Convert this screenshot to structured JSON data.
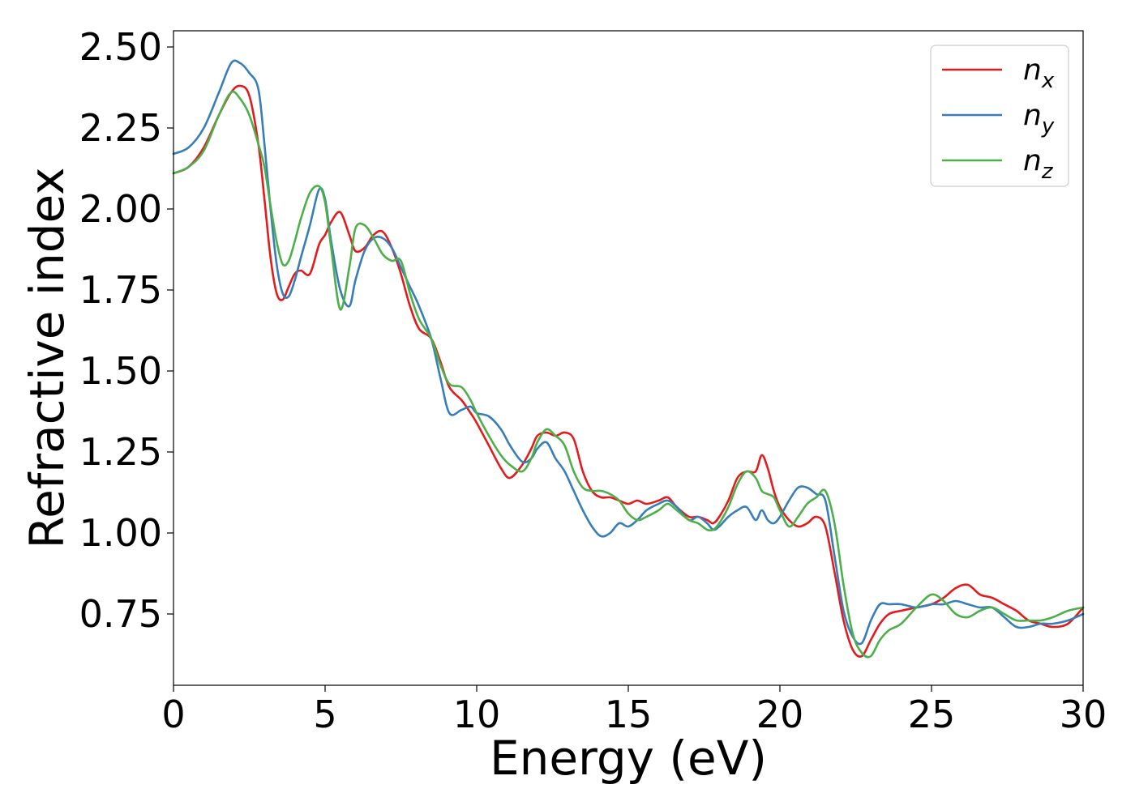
{
  "chart_data": {
    "type": "line",
    "title": "",
    "xlabel": "Energy (eV)",
    "ylabel": "Refractive index",
    "xlim": [
      0,
      30
    ],
    "ylim": [
      0.53,
      2.55
    ],
    "xticks": [
      0,
      5,
      10,
      15,
      20,
      25,
      30
    ],
    "yticks": [
      0.75,
      1.0,
      1.25,
      1.5,
      1.75,
      2.0,
      2.25,
      2.5
    ],
    "xtick_labels": [
      "0",
      "5",
      "10",
      "15",
      "20",
      "25",
      "30"
    ],
    "ytick_labels": [
      "0.75",
      "1.00",
      "1.25",
      "1.50",
      "1.75",
      "2.00",
      "2.25",
      "2.50"
    ],
    "grid": false,
    "legend_position": "top-right",
    "series": [
      {
        "name": "n",
        "subscript": "x",
        "color": "#e41a1c",
        "x": [
          0,
          0.5,
          1,
          1.5,
          1.9,
          2.2,
          2.5,
          2.8,
          3.0,
          3.2,
          3.4,
          3.6,
          3.8,
          4.0,
          4.2,
          4.5,
          4.8,
          5.0,
          5.2,
          5.5,
          5.8,
          6.0,
          6.3,
          6.6,
          6.9,
          7.2,
          7.5,
          7.8,
          8.1,
          8.5,
          8.8,
          9.1,
          9.5,
          9.8,
          10.0,
          10.4,
          10.8,
          11.1,
          11.5,
          11.8,
          12.0,
          12.3,
          12.6,
          12.9,
          13.2,
          13.5,
          13.8,
          14.1,
          14.4,
          14.7,
          15.0,
          15.3,
          15.6,
          16.0,
          16.3,
          16.6,
          17.0,
          17.3,
          17.6,
          17.8,
          18.0,
          18.3,
          18.6,
          18.9,
          19.2,
          19.4,
          19.6,
          19.8,
          20.0,
          20.3,
          20.6,
          20.9,
          21.2,
          21.5,
          21.8,
          22.1,
          22.4,
          22.7,
          23.0,
          23.3,
          23.6,
          24.0,
          24.5,
          25.0,
          25.4,
          25.8,
          26.2,
          26.6,
          27.0,
          27.4,
          27.8,
          28.2,
          28.6,
          29.0,
          29.5,
          30.0
        ],
        "y": [
          2.11,
          2.13,
          2.19,
          2.29,
          2.36,
          2.38,
          2.35,
          2.2,
          2.03,
          1.85,
          1.74,
          1.72,
          1.76,
          1.8,
          1.81,
          1.8,
          1.89,
          1.92,
          1.96,
          1.99,
          1.92,
          1.87,
          1.88,
          1.92,
          1.93,
          1.88,
          1.8,
          1.7,
          1.63,
          1.6,
          1.53,
          1.45,
          1.41,
          1.37,
          1.34,
          1.27,
          1.2,
          1.17,
          1.21,
          1.26,
          1.3,
          1.31,
          1.3,
          1.31,
          1.29,
          1.19,
          1.13,
          1.11,
          1.11,
          1.1,
          1.09,
          1.1,
          1.09,
          1.1,
          1.11,
          1.08,
          1.05,
          1.05,
          1.04,
          1.03,
          1.05,
          1.1,
          1.17,
          1.19,
          1.19,
          1.24,
          1.2,
          1.13,
          1.08,
          1.04,
          1.02,
          1.03,
          1.05,
          1.02,
          0.88,
          0.73,
          0.64,
          0.62,
          0.67,
          0.72,
          0.75,
          0.76,
          0.77,
          0.78,
          0.8,
          0.83,
          0.84,
          0.81,
          0.8,
          0.78,
          0.76,
          0.73,
          0.72,
          0.71,
          0.72,
          0.77
        ]
      },
      {
        "name": "n",
        "subscript": "y",
        "color": "#377eb8",
        "x": [
          0,
          0.5,
          1,
          1.5,
          1.9,
          2.2,
          2.5,
          2.8,
          3.0,
          3.2,
          3.4,
          3.6,
          3.8,
          4.0,
          4.2,
          4.5,
          4.8,
          5.0,
          5.2,
          5.5,
          5.8,
          6.0,
          6.3,
          6.6,
          6.9,
          7.2,
          7.5,
          7.8,
          8.1,
          8.5,
          8.8,
          9.1,
          9.5,
          9.8,
          10.0,
          10.4,
          10.8,
          11.1,
          11.5,
          11.8,
          12.0,
          12.3,
          12.6,
          12.9,
          13.2,
          13.5,
          13.8,
          14.1,
          14.4,
          14.7,
          15.0,
          15.3,
          15.6,
          16.0,
          16.3,
          16.6,
          17.0,
          17.3,
          17.6,
          17.8,
          18.0,
          18.3,
          18.6,
          18.9,
          19.2,
          19.4,
          19.6,
          19.8,
          20.0,
          20.3,
          20.6,
          20.9,
          21.2,
          21.5,
          21.8,
          22.1,
          22.4,
          22.7,
          23.0,
          23.3,
          23.6,
          24.0,
          24.5,
          25.0,
          25.4,
          25.8,
          26.2,
          26.6,
          27.0,
          27.4,
          27.8,
          28.2,
          28.6,
          29.0,
          29.5,
          30.0
        ],
        "y": [
          2.17,
          2.19,
          2.25,
          2.36,
          2.45,
          2.45,
          2.42,
          2.37,
          2.2,
          2.0,
          1.83,
          1.74,
          1.73,
          1.78,
          1.85,
          1.95,
          2.06,
          2.03,
          1.9,
          1.75,
          1.7,
          1.78,
          1.87,
          1.91,
          1.91,
          1.88,
          1.82,
          1.76,
          1.7,
          1.6,
          1.48,
          1.37,
          1.38,
          1.39,
          1.37,
          1.36,
          1.32,
          1.27,
          1.22,
          1.23,
          1.26,
          1.28,
          1.23,
          1.19,
          1.13,
          1.07,
          1.02,
          0.99,
          1.0,
          1.03,
          1.02,
          1.04,
          1.07,
          1.09,
          1.1,
          1.08,
          1.04,
          1.05,
          1.03,
          1.01,
          1.02,
          1.05,
          1.07,
          1.08,
          1.04,
          1.07,
          1.04,
          1.03,
          1.05,
          1.1,
          1.14,
          1.14,
          1.12,
          1.1,
          0.93,
          0.76,
          0.68,
          0.66,
          0.73,
          0.78,
          0.78,
          0.78,
          0.77,
          0.78,
          0.78,
          0.79,
          0.78,
          0.77,
          0.77,
          0.74,
          0.71,
          0.71,
          0.72,
          0.72,
          0.73,
          0.75
        ]
      },
      {
        "name": "n",
        "subscript": "z",
        "color": "#4daf4a",
        "x": [
          0,
          0.5,
          1,
          1.5,
          1.9,
          2.2,
          2.5,
          2.8,
          3.0,
          3.2,
          3.4,
          3.6,
          3.8,
          4.0,
          4.2,
          4.5,
          4.8,
          5.0,
          5.2,
          5.5,
          5.8,
          6.0,
          6.3,
          6.6,
          6.9,
          7.2,
          7.5,
          7.8,
          8.1,
          8.5,
          8.8,
          9.1,
          9.5,
          9.8,
          10.0,
          10.4,
          10.8,
          11.1,
          11.5,
          11.8,
          12.0,
          12.3,
          12.6,
          12.9,
          13.2,
          13.5,
          13.8,
          14.1,
          14.4,
          14.7,
          15.0,
          15.3,
          15.6,
          16.0,
          16.3,
          16.6,
          17.0,
          17.3,
          17.6,
          17.8,
          18.0,
          18.3,
          18.6,
          18.9,
          19.2,
          19.4,
          19.6,
          19.8,
          20.0,
          20.3,
          20.6,
          20.9,
          21.2,
          21.5,
          21.8,
          22.1,
          22.4,
          22.7,
          23.0,
          23.3,
          23.6,
          24.0,
          24.5,
          25.0,
          25.4,
          25.8,
          26.2,
          26.6,
          27.0,
          27.4,
          27.8,
          28.2,
          28.6,
          29.0,
          29.5,
          30.0
        ],
        "y": [
          2.11,
          2.13,
          2.18,
          2.29,
          2.36,
          2.34,
          2.29,
          2.2,
          2.13,
          2.01,
          1.9,
          1.83,
          1.84,
          1.9,
          1.97,
          2.05,
          2.07,
          2.02,
          1.88,
          1.69,
          1.82,
          1.94,
          1.95,
          1.91,
          1.86,
          1.84,
          1.84,
          1.74,
          1.66,
          1.6,
          1.52,
          1.46,
          1.45,
          1.41,
          1.37,
          1.3,
          1.24,
          1.21,
          1.19,
          1.23,
          1.28,
          1.32,
          1.3,
          1.27,
          1.19,
          1.14,
          1.13,
          1.13,
          1.12,
          1.1,
          1.06,
          1.04,
          1.05,
          1.07,
          1.09,
          1.07,
          1.04,
          1.03,
          1.01,
          1.01,
          1.03,
          1.08,
          1.15,
          1.19,
          1.17,
          1.13,
          1.12,
          1.11,
          1.07,
          1.02,
          1.05,
          1.09,
          1.11,
          1.13,
          1.03,
          0.84,
          0.69,
          0.63,
          0.62,
          0.67,
          0.7,
          0.72,
          0.77,
          0.81,
          0.79,
          0.75,
          0.74,
          0.76,
          0.77,
          0.75,
          0.73,
          0.73,
          0.73,
          0.74,
          0.76,
          0.77
        ]
      }
    ]
  }
}
